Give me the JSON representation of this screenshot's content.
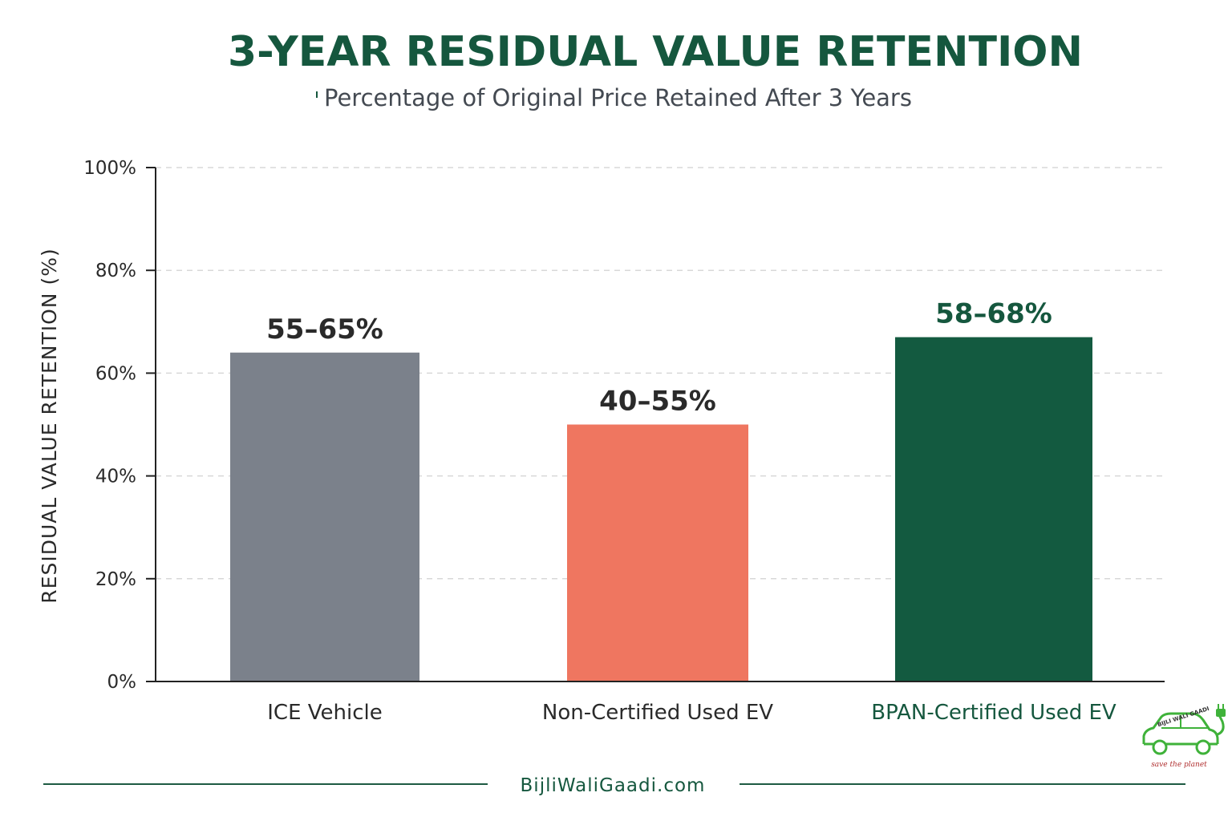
{
  "chart_data": {
    "type": "bar",
    "title": "3-YEAR RESIDUAL VALUE RETENTION",
    "subtitle": "Percentage of Original Price Retained After 3 Years",
    "ylabel": "RESIDUAL VALUE RETENTION (%)",
    "xlabel": "",
    "ylim": [
      0,
      100
    ],
    "yticks": [
      0,
      20,
      40,
      60,
      80,
      100
    ],
    "ytick_labels": [
      "0%",
      "20%",
      "40%",
      "60%",
      "80%",
      "100%"
    ],
    "grid": true,
    "categories": [
      "ICE Vehicle",
      "Non-Certified Used EV",
      "BPAN-Certified Used EV"
    ],
    "values": [
      64,
      50,
      67
    ],
    "data_labels": [
      "55–65%",
      "40–55%",
      "58–68%"
    ],
    "colors": [
      "#7b818b",
      "#ef7660",
      "#135a40"
    ]
  },
  "colors": {
    "title": "#15573e",
    "text_dark": "#2a2a2a",
    "axis": "#222222",
    "grid": "#d8d8d8",
    "footer_line": "#1e5a42",
    "logo_green": "#3fb23a",
    "logo_text": "#333333",
    "logo_tag": "#b03030"
  },
  "footer": {
    "site": "BijliWaliGaadi.com"
  },
  "logo": {
    "name": "BIJLI WALI GAADI",
    "tagline": "save the planet",
    "icon": "electric-car-plug-icon"
  }
}
